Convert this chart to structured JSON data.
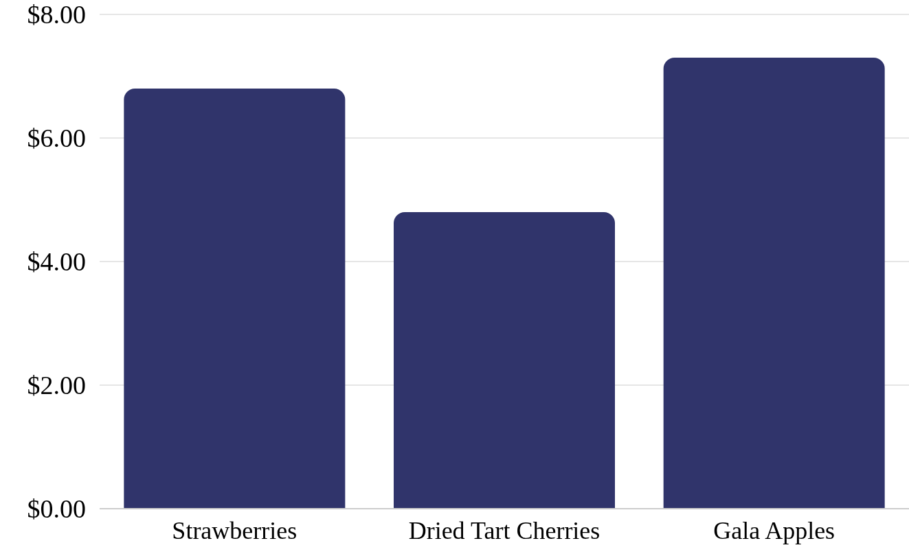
{
  "chart_data": {
    "type": "bar",
    "categories": [
      "Strawberries",
      "Dried Tart Cherries",
      "Gala Apples"
    ],
    "values": [
      6.8,
      4.8,
      7.3
    ],
    "color": "#30346b",
    "ylim": [
      0,
      8
    ],
    "yticks": [
      {
        "value": 0,
        "label": "$0.00"
      },
      {
        "value": 2,
        "label": "$2.00"
      },
      {
        "value": 4,
        "label": "$4.00"
      },
      {
        "value": 6,
        "label": "$6.00"
      },
      {
        "value": 8,
        "label": "$8.00"
      }
    ],
    "grid": "y"
  }
}
